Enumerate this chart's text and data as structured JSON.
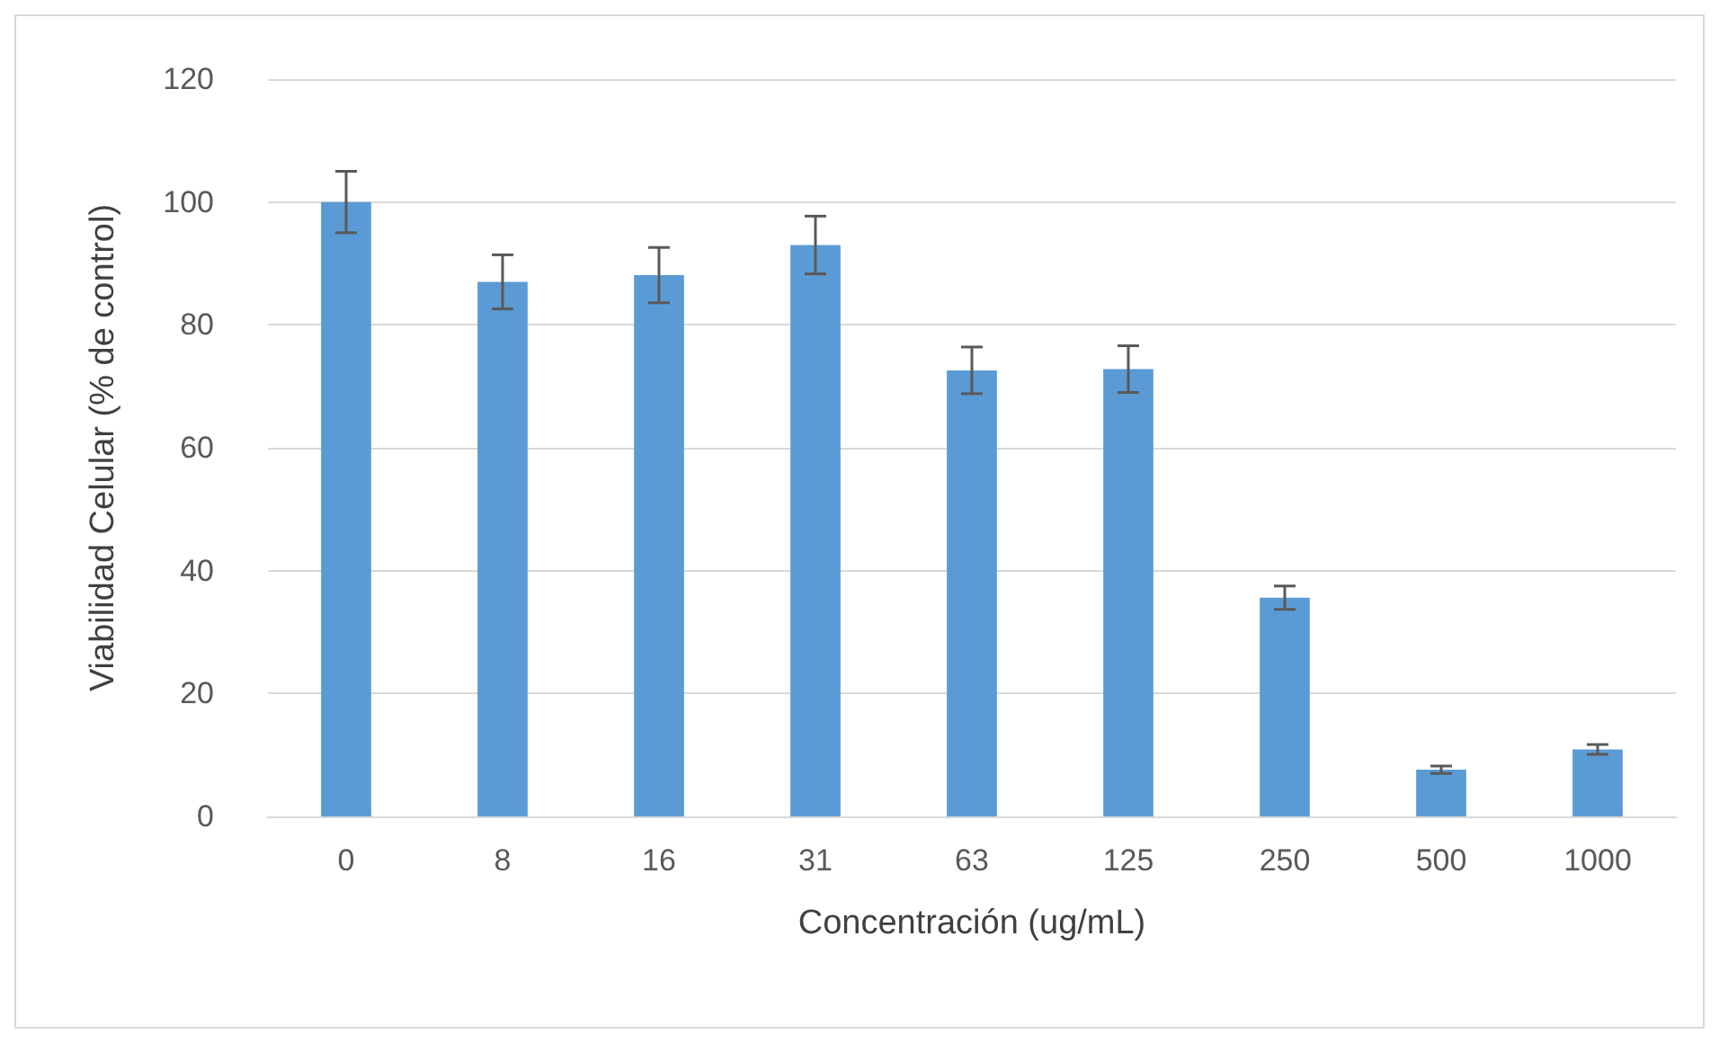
{
  "chart_data": {
    "type": "bar",
    "xlabel": "Concentración (ug/mL)",
    "ylabel": "Viabilidad Celular (% de control)",
    "categories": [
      "0",
      "8",
      "16",
      "31",
      "63",
      "125",
      "250",
      "500",
      "1000"
    ],
    "values": [
      100,
      87,
      88.1,
      93,
      72.6,
      72.8,
      35.6,
      7.6,
      10.9
    ],
    "errors": [
      5,
      4.4,
      4.5,
      4.7,
      3.8,
      3.8,
      1.9,
      0.6,
      0.8
    ],
    "color": "#5b9bd5",
    "ylim": [
      0,
      120
    ],
    "yticks": [
      0,
      20,
      40,
      60,
      80,
      100,
      120
    ],
    "grid": "y"
  }
}
